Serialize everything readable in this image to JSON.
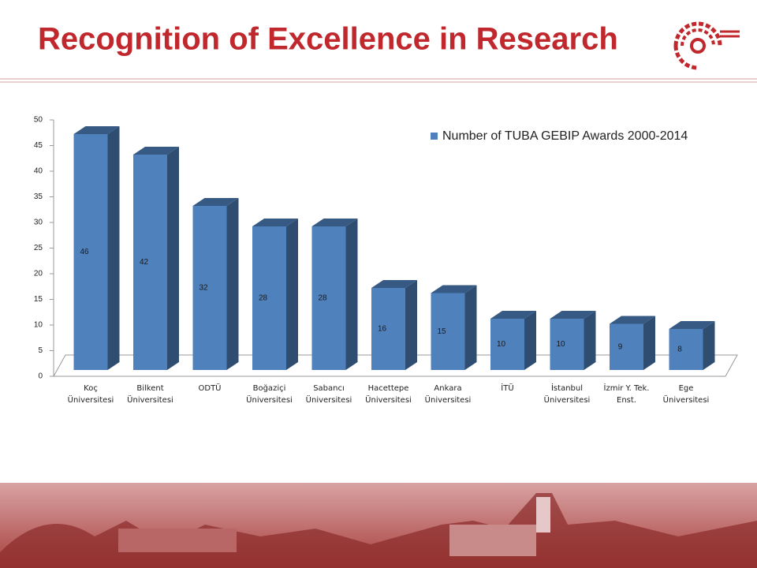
{
  "header": {
    "title": "Recognition of Excellence in Research"
  },
  "chart_data": {
    "type": "bar3d",
    "categories": [
      "Koç\nÜniversitesi",
      "Bilkent\nÜniversitesi",
      "ODTÜ",
      "Boğaziçi\nÜniversitesi",
      "Sabancı\nÜniversitesi",
      "Hacettepe\nÜniversitesi",
      "Ankara\nÜniversitesi",
      "İTÜ",
      "İstanbul\nÜniversitesi",
      "İzmir Y. Tek.\nEnst.",
      "Ege\nÜniversitesi"
    ],
    "series": [
      {
        "name": "Number of TUBA GEBIP Awards 2000-2014",
        "color": "#4f81bd",
        "values": [
          46,
          42,
          32,
          28,
          28,
          16,
          15,
          10,
          10,
          9,
          8
        ]
      }
    ],
    "ylim": [
      0,
      50
    ],
    "yticks": [
      0,
      5,
      10,
      15,
      20,
      25,
      30,
      35,
      40,
      45,
      50
    ],
    "legend": "top-right"
  }
}
